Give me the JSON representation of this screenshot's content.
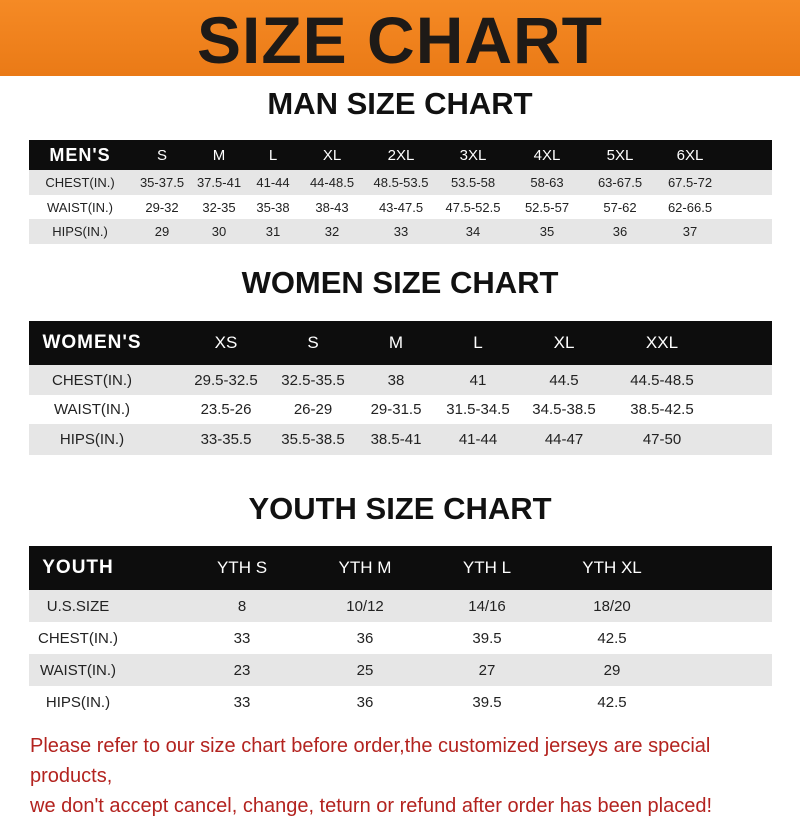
{
  "banner": {
    "title": "SIZE CHART",
    "color": "#f0821e"
  },
  "men": {
    "title": "MAN SIZE CHART",
    "header": [
      "MEN'S",
      "S",
      "M",
      "L",
      "XL",
      "2XL",
      "3XL",
      "4XL",
      "5XL",
      "6XL"
    ],
    "rows": [
      [
        "CHEST(IN.)",
        "35-37.5",
        "37.5-41",
        "41-44",
        "44-48.5",
        "48.5-53.5",
        "53.5-58",
        "58-63",
        "63-67.5",
        "67.5-72"
      ],
      [
        "WAIST(IN.)",
        "29-32",
        "32-35",
        "35-38",
        "38-43",
        "43-47.5",
        "47.5-52.5",
        "52.5-57",
        "57-62",
        "62-66.5"
      ],
      [
        "HIPS(IN.)",
        "29",
        "30",
        "31",
        "32",
        "33",
        "34",
        "35",
        "36",
        "37"
      ]
    ]
  },
  "women": {
    "title": "WOMEN SIZE CHART",
    "header": [
      "WOMEN'S",
      "XS",
      "S",
      "M",
      "L",
      "XL",
      "XXL"
    ],
    "rows": [
      [
        "CHEST(IN.)",
        "29.5-32.5",
        "32.5-35.5",
        "38",
        "41",
        "44.5",
        "44.5-48.5"
      ],
      [
        "WAIST(IN.)",
        "23.5-26",
        "26-29",
        "29-31.5",
        "31.5-34.5",
        "34.5-38.5",
        "38.5-42.5"
      ],
      [
        "HIPS(IN.)",
        "33-35.5",
        "35.5-38.5",
        "38.5-41",
        "41-44",
        "44-47",
        "47-50"
      ]
    ]
  },
  "youth": {
    "title": "YOUTH SIZE CHART",
    "header": [
      "YOUTH",
      "YTH S",
      "YTH M",
      "YTH L",
      "YTH XL"
    ],
    "rows": [
      [
        "U.S.SIZE",
        "8",
        "10/12",
        "14/16",
        "18/20"
      ],
      [
        "CHEST(IN.)",
        "33",
        "36",
        "39.5",
        "42.5"
      ],
      [
        "WAIST(IN.)",
        "23",
        "25",
        "27",
        "29"
      ],
      [
        "HIPS(IN.)",
        "33",
        "36",
        "39.5",
        "42.5"
      ]
    ]
  },
  "notice": {
    "line1": "Please refer to our size chart before order,the customized jerseys are special products,",
    "line2": "we don't accept cancel, change, teturn or refund after order has been placed!",
    "color": "#b3231f"
  }
}
